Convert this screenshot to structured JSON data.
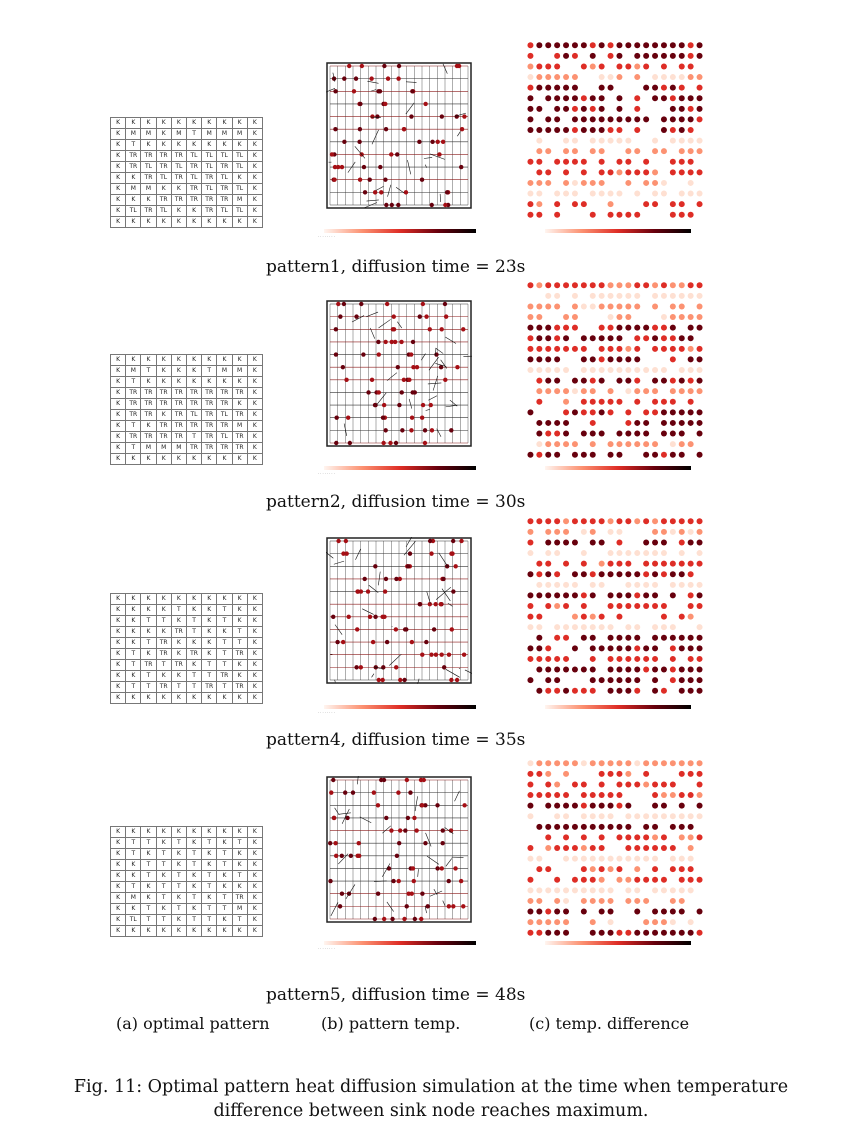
{
  "patterns": [
    {
      "id": "pattern1",
      "caption": "pattern1, diffusion time = 23s",
      "grid": [
        [
          "K",
          "K",
          "K",
          "K",
          "K",
          "K",
          "K",
          "K",
          "K",
          "K"
        ],
        [
          "K",
          "M",
          "M",
          "K",
          "M",
          "T",
          "M",
          "M",
          "M",
          "K"
        ],
        [
          "K",
          "T",
          "K",
          "K",
          "K",
          "K",
          "K",
          "K",
          "K",
          "K"
        ],
        [
          "K",
          "TR",
          "TR",
          "TR",
          "TR",
          "TL",
          "TL",
          "TL",
          "TL",
          "K"
        ],
        [
          "K",
          "TR",
          "TL",
          "TR",
          "TL",
          "TR",
          "TL",
          "TR",
          "TL",
          "K"
        ],
        [
          "K",
          "K",
          "TR",
          "TL",
          "TR",
          "TL",
          "TR",
          "TL",
          "K",
          "K"
        ],
        [
          "K",
          "M",
          "M",
          "K",
          "K",
          "TR",
          "TL",
          "TR",
          "TL",
          "K"
        ],
        [
          "K",
          "K",
          "K",
          "TR",
          "TR",
          "TR",
          "TR",
          "TR",
          "M",
          "K"
        ],
        [
          "K",
          "TL",
          "TR",
          "TL",
          "K",
          "K",
          "TR",
          "TL",
          "TL",
          "K"
        ],
        [
          "K",
          "K",
          "K",
          "K",
          "K",
          "K",
          "K",
          "K",
          "K",
          "K"
        ]
      ]
    },
    {
      "id": "pattern2",
      "caption": "pattern2, diffusion time = 30s",
      "grid": [
        [
          "K",
          "K",
          "K",
          "K",
          "K",
          "K",
          "K",
          "K",
          "K",
          "K"
        ],
        [
          "K",
          "M",
          "T",
          "K",
          "K",
          "K",
          "T",
          "M",
          "M",
          "K"
        ],
        [
          "K",
          "T",
          "K",
          "K",
          "K",
          "K",
          "K",
          "K",
          "K",
          "K"
        ],
        [
          "K",
          "TR",
          "TR",
          "TR",
          "TR",
          "TR",
          "TR",
          "TR",
          "TR",
          "K"
        ],
        [
          "K",
          "TR",
          "TR",
          "TR",
          "TR",
          "TR",
          "TR",
          "TR",
          "K",
          "K"
        ],
        [
          "K",
          "TR",
          "TR",
          "K",
          "TR",
          "TL",
          "TR",
          "TL",
          "TR",
          "K"
        ],
        [
          "K",
          "T",
          "K",
          "TR",
          "TR",
          "TR",
          "TR",
          "TR",
          "M",
          "K"
        ],
        [
          "K",
          "TR",
          "TR",
          "TR",
          "TR",
          "T",
          "TR",
          "TL",
          "TR",
          "K"
        ],
        [
          "K",
          "T",
          "M",
          "M",
          "M",
          "TR",
          "TR",
          "TR",
          "TR",
          "K"
        ],
        [
          "K",
          "K",
          "K",
          "K",
          "K",
          "K",
          "K",
          "K",
          "K",
          "K"
        ]
      ]
    },
    {
      "id": "pattern4",
      "caption": "pattern4, diffusion time = 35s",
      "grid": [
        [
          "K",
          "K",
          "K",
          "K",
          "K",
          "K",
          "K",
          "K",
          "K",
          "K"
        ],
        [
          "K",
          "K",
          "K",
          "K",
          "T",
          "K",
          "K",
          "T",
          "K",
          "K"
        ],
        [
          "K",
          "K",
          "T",
          "T",
          "K",
          "T",
          "K",
          "T",
          "K",
          "K"
        ],
        [
          "K",
          "K",
          "K",
          "K",
          "TR",
          "T",
          "K",
          "K",
          "T",
          "K"
        ],
        [
          "K",
          "K",
          "T",
          "TR",
          "K",
          "K",
          "K",
          "T",
          "T",
          "K"
        ],
        [
          "K",
          "T",
          "K",
          "TR",
          "K",
          "TR",
          "K",
          "T",
          "TR",
          "K"
        ],
        [
          "K",
          "T",
          "TR",
          "T",
          "TR",
          "K",
          "T",
          "T",
          "K",
          "K"
        ],
        [
          "K",
          "K",
          "T",
          "K",
          "K",
          "T",
          "T",
          "TR",
          "K",
          "K"
        ],
        [
          "K",
          "T",
          "T",
          "TR",
          "T",
          "T",
          "TR",
          "T",
          "TR",
          "K"
        ],
        [
          "K",
          "K",
          "K",
          "K",
          "K",
          "K",
          "K",
          "K",
          "K",
          "K"
        ]
      ]
    },
    {
      "id": "pattern5",
      "caption": "pattern5, diffusion time = 48s",
      "grid": [
        [
          "K",
          "K",
          "K",
          "K",
          "K",
          "K",
          "K",
          "K",
          "K",
          "K"
        ],
        [
          "K",
          "T",
          "T",
          "K",
          "T",
          "K",
          "T",
          "K",
          "T",
          "K"
        ],
        [
          "K",
          "T",
          "K",
          "T",
          "K",
          "T",
          "K",
          "T",
          "K",
          "K"
        ],
        [
          "K",
          "K",
          "T",
          "T",
          "K",
          "T",
          "K",
          "T",
          "K",
          "K"
        ],
        [
          "K",
          "K",
          "T",
          "K",
          "T",
          "K",
          "T",
          "K",
          "T",
          "K"
        ],
        [
          "K",
          "T",
          "K",
          "T",
          "T",
          "K",
          "T",
          "K",
          "K",
          "K"
        ],
        [
          "K",
          "M",
          "K",
          "T",
          "K",
          "T",
          "K",
          "T",
          "TR",
          "K"
        ],
        [
          "K",
          "K",
          "T",
          "K",
          "T",
          "K",
          "T",
          "T",
          "M",
          "K"
        ],
        [
          "K",
          "TL",
          "T",
          "T",
          "K",
          "T",
          "T",
          "K",
          "T",
          "K"
        ],
        [
          "K",
          "K",
          "K",
          "K",
          "K",
          "K",
          "K",
          "K",
          "K",
          "K"
        ]
      ]
    }
  ],
  "column_labels": {
    "a": "(a) optimal pattern",
    "b": "(b) pattern temp.",
    "c": "(c) temp. difference"
  },
  "figure_caption_line1": "Fig. 11: Optimal pattern heat diffusion simulation at the time when temperature",
  "figure_caption_line2": "difference between sink node reaches maximum.",
  "colors": {
    "dark": "#67000d",
    "mid": "#de2d26",
    "light": "#fc9272",
    "pale": "#fee0d2"
  }
}
